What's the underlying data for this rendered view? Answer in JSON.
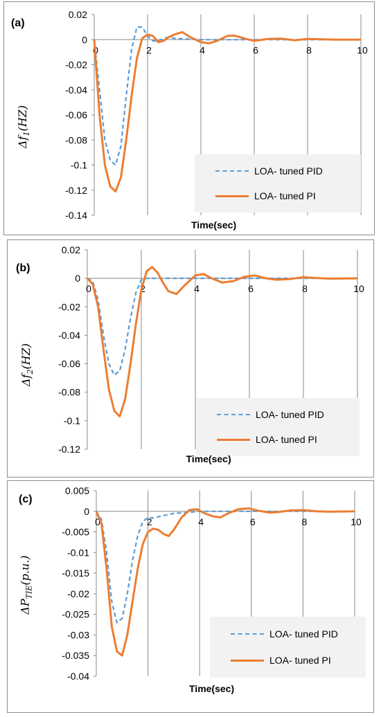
{
  "colors": {
    "pid": "#5b9bd5",
    "pi": "#ed7d31",
    "grid": "#888888",
    "axis": "#888888"
  },
  "chart_data": [
    {
      "type": "line",
      "panel_label": "(a)",
      "ylabel_main": "Δf",
      "ylabel_sub": "1",
      "ylabel_unit": "(HZ)",
      "xlabel": "Time(sec)",
      "xlim": [
        0,
        10
      ],
      "ylim": [
        -0.14,
        0.02
      ],
      "x_ticks": [
        "0",
        "2",
        "4",
        "6",
        "8",
        "10"
      ],
      "y_ticks": [
        "0.02",
        "0",
        "-0.02",
        "-0.04",
        "-0.06",
        "-0.08",
        "-0.1",
        "-0.12",
        "-0.14"
      ],
      "grid": "vertical",
      "legend_position": "bottom-right",
      "series": [
        {
          "name": "LOA- tuned PID",
          "style": "dashed",
          "x": [
            0,
            0.2,
            0.4,
            0.6,
            0.8,
            1.0,
            1.2,
            1.4,
            1.6,
            1.8,
            2.0,
            2.2,
            2.4,
            2.6,
            2.8,
            3.0,
            3.5,
            4.0,
            5.0,
            6.0,
            8.0,
            10.0
          ],
          "y": [
            0,
            -0.04,
            -0.08,
            -0.096,
            -0.1,
            -0.085,
            -0.045,
            -0.008,
            0.01,
            0.01,
            0.003,
            -0.001,
            -0.001,
            0.001,
            0.002,
            0.001,
            0.0005,
            0,
            0,
            0,
            0,
            0
          ]
        },
        {
          "name": "LOA- tuned PI",
          "style": "solid",
          "x": [
            0,
            0.2,
            0.4,
            0.6,
            0.8,
            1.0,
            1.2,
            1.4,
            1.6,
            1.8,
            2.0,
            2.2,
            2.4,
            2.6,
            2.8,
            3.0,
            3.3,
            3.6,
            4.0,
            4.3,
            4.6,
            5.0,
            5.3,
            5.7,
            6.0,
            6.5,
            7.0,
            7.5,
            8.0,
            8.5,
            9.0,
            10.0
          ],
          "y": [
            0,
            -0.06,
            -0.1,
            -0.117,
            -0.121,
            -0.11,
            -0.08,
            -0.045,
            -0.015,
            0.001,
            0.004,
            0.003,
            -0.002,
            -0.001,
            0.002,
            0.004,
            0.006,
            0.002,
            -0.002,
            -0.003,
            -0.001,
            0.003,
            0.003,
            0.0005,
            -0.001,
            0.0005,
            0.0008,
            -0.0005,
            0.0005,
            0.0003,
            0,
            0
          ]
        }
      ]
    },
    {
      "type": "line",
      "panel_label": "(b)",
      "ylabel_main": "Δf",
      "ylabel_sub": "2",
      "ylabel_unit": "(HZ)",
      "xlabel": "Time(sec)",
      "xlim": [
        0,
        10
      ],
      "ylim": [
        -0.12,
        0.02
      ],
      "x_ticks": [
        "0",
        "2",
        "4",
        "6",
        "8",
        "10"
      ],
      "y_ticks": [
        "0.02",
        "0",
        "-0.02",
        "-0.04",
        "-0.06",
        "-0.08",
        "-0.1",
        "-0.12"
      ],
      "grid": "vertical",
      "legend_position": "bottom-right",
      "series": [
        {
          "name": "LOA- tuned PID",
          "style": "dashed",
          "x": [
            0,
            0.2,
            0.4,
            0.6,
            0.8,
            1.0,
            1.2,
            1.4,
            1.6,
            1.8,
            2.0,
            2.2,
            2.5,
            3.0,
            4.0,
            5.0,
            6.0,
            8.0,
            10.0
          ],
          "y": [
            0,
            -0.002,
            -0.015,
            -0.04,
            -0.06,
            -0.068,
            -0.065,
            -0.05,
            -0.028,
            -0.01,
            -0.001,
            0,
            0,
            0,
            0,
            0,
            0,
            0,
            0
          ]
        },
        {
          "name": "LOA- tuned PI",
          "style": "solid",
          "x": [
            0,
            0.2,
            0.4,
            0.6,
            0.8,
            1.0,
            1.2,
            1.4,
            1.6,
            1.8,
            2.0,
            2.2,
            2.4,
            2.6,
            2.8,
            3.0,
            3.3,
            3.6,
            4.0,
            4.3,
            4.6,
            5.0,
            5.4,
            5.8,
            6.2,
            6.6,
            7.0,
            7.5,
            8.0,
            8.5,
            9.0,
            10.0
          ],
          "y": [
            0,
            -0.004,
            -0.02,
            -0.05,
            -0.078,
            -0.093,
            -0.097,
            -0.085,
            -0.06,
            -0.032,
            -0.008,
            0.005,
            0.008,
            0.004,
            -0.003,
            -0.009,
            -0.011,
            -0.005,
            0.002,
            0.003,
            0.0,
            -0.003,
            -0.002,
            0.001,
            0.002,
            0.0,
            -0.001,
            -0.0005,
            0.0008,
            0.0002,
            -0.0002,
            0
          ]
        }
      ]
    },
    {
      "type": "line",
      "panel_label": "(c)",
      "ylabel_main": "ΔP",
      "ylabel_sub": "TIE",
      "ylabel_unit": "(p.u.)",
      "xlabel": "Time(sec)",
      "xlim": [
        0,
        10
      ],
      "ylim": [
        -0.04,
        0.005
      ],
      "x_ticks": [
        "0",
        "2",
        "4",
        "6",
        "8",
        "10"
      ],
      "y_ticks": [
        "0.005",
        "0",
        "-0.005",
        "-0.01",
        "-0.015",
        "-0.02",
        "-0.025",
        "-0.03",
        "-0.035",
        "-0.04"
      ],
      "grid": "vertical",
      "legend_position": "bottom-right",
      "series": [
        {
          "name": "LOA- tuned PID",
          "style": "dashed",
          "x": [
            0,
            0.2,
            0.4,
            0.6,
            0.8,
            1.0,
            1.2,
            1.4,
            1.6,
            1.8,
            2.0,
            2.2,
            2.5,
            3.0,
            3.5,
            4.0,
            4.5,
            5.0,
            6.0,
            8.0,
            10.0
          ],
          "y": [
            0,
            -0.002,
            -0.01,
            -0.022,
            -0.027,
            -0.026,
            -0.02,
            -0.012,
            -0.006,
            -0.0025,
            -0.0015,
            -0.0016,
            -0.0012,
            -0.0005,
            -0.0003,
            0,
            0,
            0,
            0,
            0,
            0
          ]
        },
        {
          "name": "LOA- tuned PI",
          "style": "solid",
          "x": [
            0,
            0.2,
            0.4,
            0.6,
            0.8,
            1.0,
            1.2,
            1.4,
            1.6,
            1.8,
            2.0,
            2.2,
            2.4,
            2.6,
            2.8,
            3.0,
            3.3,
            3.6,
            3.9,
            4.2,
            4.5,
            4.8,
            5.1,
            5.5,
            5.9,
            6.3,
            6.7,
            7.0,
            7.5,
            8.0,
            8.5,
            9.0,
            10.0
          ],
          "y": [
            0,
            -0.003,
            -0.014,
            -0.028,
            -0.034,
            -0.035,
            -0.03,
            -0.022,
            -0.014,
            -0.008,
            -0.005,
            -0.0042,
            -0.0045,
            -0.0055,
            -0.006,
            -0.0045,
            -0.0015,
            0.0003,
            0.0005,
            -0.0005,
            -0.0012,
            -0.0015,
            -0.0005,
            0.0005,
            0.0007,
            0.0001,
            -0.0003,
            -0.0002,
            0.0002,
            0.0003,
            0,
            -0.0001,
            0
          ]
        }
      ]
    }
  ]
}
